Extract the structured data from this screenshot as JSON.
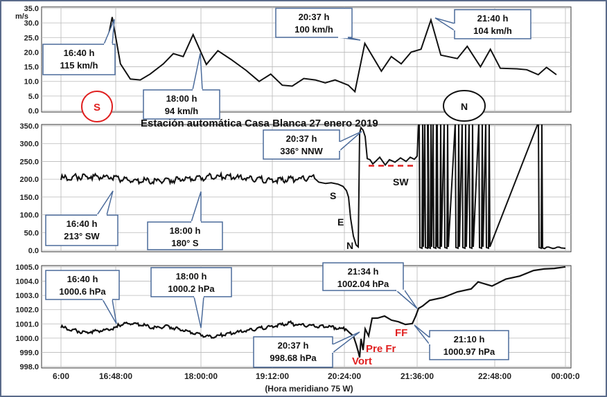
{
  "chart_data": [
    {
      "type": "line",
      "ylabel": "m/s",
      "ylim": [
        0,
        35
      ],
      "yticks": [
        "0.0",
        "5.0",
        "10.0",
        "15.0",
        "20.0",
        "25.0",
        "30.0",
        "35.0"
      ],
      "grid": true,
      "series": [
        {
          "points": [
            [
              0,
              18
            ],
            [
              0.5,
              32
            ],
            [
              1,
              16
            ],
            [
              1.6,
              10.8
            ],
            [
              2.2,
              10.5
            ],
            [
              2.8,
              12.5
            ],
            [
              3.6,
              16
            ],
            [
              4.2,
              19.5
            ],
            [
              4.8,
              18.5
            ],
            [
              5.4,
              26
            ],
            [
              6.2,
              15.8
            ],
            [
              6.9,
              20.5
            ],
            [
              7.7,
              17.5
            ],
            [
              8.6,
              13.8
            ],
            [
              9.4,
              10
            ],
            [
              10.1,
              12.5
            ],
            [
              10.8,
              8.7
            ],
            [
              11.4,
              8.4
            ],
            [
              12.1,
              11
            ],
            [
              12.8,
              10.5
            ],
            [
              13.4,
              9.5
            ],
            [
              14.0,
              10.5
            ],
            [
              14.8,
              8.7
            ],
            [
              15.2,
              6.5
            ],
            [
              15.8,
              23
            ],
            [
              16.8,
              13.5
            ],
            [
              17.4,
              18.5
            ],
            [
              18.0,
              16
            ],
            [
              18.6,
              20
            ],
            [
              19.2,
              21
            ],
            [
              19.8,
              31
            ],
            [
              20.4,
              19
            ],
            [
              21.4,
              17.8
            ],
            [
              22.0,
              22
            ],
            [
              22.8,
              15
            ],
            [
              23.4,
              21
            ],
            [
              24.0,
              14.5
            ],
            [
              25.0,
              14.3
            ],
            [
              25.6,
              14
            ],
            [
              26.3,
              12.3
            ],
            [
              26.8,
              14.8
            ],
            [
              27.4,
              12.3
            ]
          ]
        }
      ],
      "annotations": [
        {
          "time": "16:40 h",
          "value": "115 km/h"
        },
        {
          "time": "18:00 h",
          "value": "94 km/h"
        },
        {
          "time": "20:37 h",
          "value": "100 km/h"
        },
        {
          "time": "21:40 h",
          "value": "104 km/h"
        }
      ],
      "markers": [
        "S",
        "N"
      ]
    },
    {
      "type": "line",
      "title": "Estación automática Casa Blanca  27 enero 2019",
      "ylim": [
        0,
        360
      ],
      "yticks": [
        "0.0",
        "50.0",
        "100.0",
        "150.0",
        "200.0",
        "250.0",
        "300.0",
        "350.0"
      ],
      "grid": true,
      "annotations": [
        {
          "time": "16:40 h",
          "value": "213° SW"
        },
        {
          "time": "18:00 h",
          "value": "180° S"
        },
        {
          "time": "20:37 h",
          "value": "336° NNW"
        }
      ],
      "direction_labels": [
        "S",
        "E",
        "N",
        "SW"
      ]
    },
    {
      "type": "line",
      "ylim": [
        998,
        1005
      ],
      "yticks": [
        "998.0",
        "999.0",
        "1000.0",
        "1001.0",
        "1002.0",
        "1003.0",
        "1004.0",
        "1005.0"
      ],
      "grid": true,
      "xlabel": "(Hora meridiano 75 W)",
      "xticks": [
        "6:00",
        "16:48:00",
        "18:00:00",
        "19:12:00",
        "20:24:00",
        "21:36:00",
        "22:48:00",
        "00:00:0"
      ],
      "annotations": [
        {
          "time": "16:40 h",
          "value": "1000.6 hPa"
        },
        {
          "time": "18:00 h",
          "value": "1000.2 hPa"
        },
        {
          "time": "20:37 h",
          "value": "998.68 hPa"
        },
        {
          "time": "21:34 h",
          "value": "1002.04 hPa"
        },
        {
          "time": "21:10 h",
          "value": "1000.97 hPa"
        }
      ],
      "event_labels": [
        "Pre Fr",
        "Vort",
        "FF"
      ]
    }
  ]
}
